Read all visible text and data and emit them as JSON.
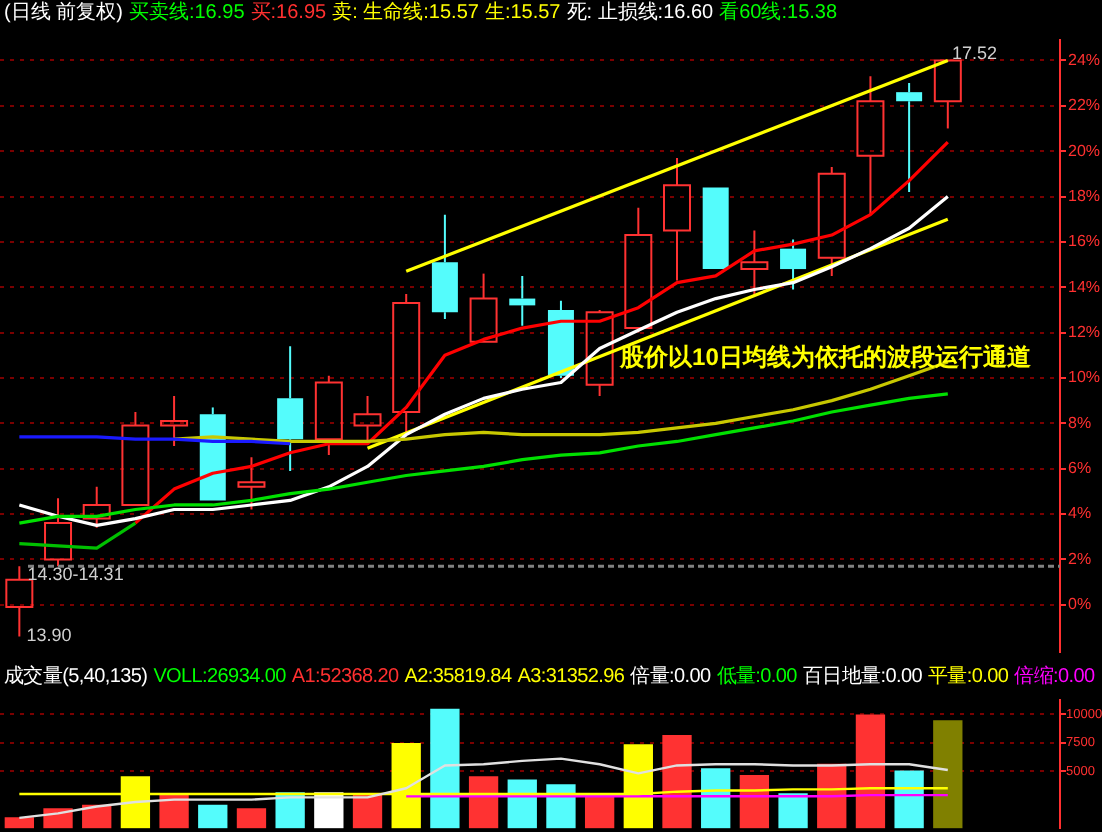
{
  "chart_data": [
    {
      "type": "candlestick",
      "title": "(日线 前复权)",
      "categories": [
        null,
        null,
        null,
        null,
        null,
        null,
        null,
        null,
        null,
        null,
        null,
        null,
        null,
        null,
        null,
        null,
        null,
        null,
        null,
        null,
        null,
        null,
        null,
        null,
        null
      ],
      "ohlc": [
        [
          -0.1,
          1.7,
          -1.4,
          1.1
        ],
        [
          2.0,
          4.7,
          1.7,
          3.6
        ],
        [
          3.8,
          5.2,
          3.4,
          4.4
        ],
        [
          4.4,
          8.5,
          4.4,
          7.9
        ],
        [
          7.9,
          9.2,
          7.0,
          8.1
        ],
        [
          8.4,
          8.7,
          4.6,
          4.6
        ],
        [
          5.2,
          6.5,
          4.2,
          5.4
        ],
        [
          9.1,
          11.4,
          5.9,
          7.3
        ],
        [
          7.3,
          10.1,
          6.6,
          9.8
        ],
        [
          7.9,
          9.2,
          7.1,
          8.4
        ],
        [
          8.5,
          13.7,
          7.5,
          13.3
        ],
        [
          15.1,
          17.2,
          12.6,
          12.9
        ],
        [
          11.6,
          14.6,
          11.6,
          13.5
        ],
        [
          13.5,
          14.5,
          12.3,
          13.2
        ],
        [
          13.0,
          13.4,
          10.0,
          10.1
        ],
        [
          9.7,
          13.0,
          9.2,
          12.9
        ],
        [
          12.2,
          17.5,
          12.0,
          16.3
        ],
        [
          16.5,
          19.7,
          14.3,
          18.5
        ],
        [
          18.4,
          18.4,
          14.8,
          14.8
        ],
        [
          14.8,
          16.5,
          13.6,
          15.1
        ],
        [
          15.7,
          16.1,
          13.9,
          14.8
        ],
        [
          15.3,
          19.3,
          14.5,
          19.0
        ],
        [
          19.8,
          23.3,
          17.2,
          22.2
        ],
        [
          22.6,
          23.0,
          18.2,
          22.2
        ],
        [
          22.2,
          24.0,
          21.0,
          24.0
        ]
      ],
      "colors": [
        "#ff3232",
        "#ff3232",
        "#ff3232",
        "#ff3232",
        "#ff3232",
        "#54fcfc",
        "#ff3232",
        "#54fcfc",
        "#ff3232",
        "#ff3232",
        "#ff3232",
        "#54fcfc",
        "#ff3232",
        "#54fcfc",
        "#54fcfc",
        "#ff3232",
        "#ff3232",
        "#ff3232",
        "#54fcfc",
        "#ff3232",
        "#54fcfc",
        "#ff3232",
        "#ff3232",
        "#54fcfc",
        "#ff3232"
      ],
      "series": [
        {
          "type": "line",
          "color": "#1a1aff",
          "values": [
            7.4,
            7.4,
            7.4,
            7.3,
            7.3,
            7.2,
            7.2,
            7.1,
            null,
            null,
            null,
            null,
            null,
            null,
            null,
            null,
            null,
            null,
            null,
            null,
            null,
            null,
            null,
            null,
            null
          ]
        },
        {
          "type": "line",
          "color": "#00c000",
          "values": [
            2.7,
            2.6,
            2.5,
            3.6,
            null,
            null,
            null,
            null,
            null,
            null,
            null,
            null,
            null,
            null,
            null,
            null,
            null,
            null,
            null,
            null,
            null,
            null,
            null,
            null,
            null
          ]
        },
        {
          "type": "line",
          "color": "#c8c800",
          "values": [
            null,
            null,
            null,
            null,
            7.3,
            7.4,
            7.3,
            7.2,
            7.2,
            7.2,
            7.3,
            7.5,
            7.6,
            7.5,
            7.5,
            7.5,
            7.6,
            7.8,
            8.0,
            8.3,
            8.6,
            9.0,
            9.5,
            10.1,
            10.7
          ]
        },
        {
          "type": "line",
          "color": "#00e000",
          "values": [
            3.6,
            3.9,
            3.9,
            4.2,
            4.4,
            4.4,
            4.6,
            4.9,
            5.1,
            5.4,
            5.7,
            5.9,
            6.1,
            6.4,
            6.6,
            6.7,
            7.0,
            7.2,
            7.5,
            7.8,
            8.1,
            8.5,
            8.8,
            9.1,
            9.3
          ]
        },
        {
          "type": "line",
          "color": "#ffffff",
          "values": [
            4.4,
            3.9,
            3.5,
            3.8,
            4.2,
            4.2,
            4.4,
            4.6,
            5.2,
            6.1,
            7.5,
            8.4,
            9.1,
            9.5,
            9.8,
            11.3,
            12.1,
            12.9,
            13.5,
            13.9,
            14.2,
            14.9,
            15.7,
            16.6,
            18.0
          ]
        },
        {
          "type": "line",
          "color": "#ff0000",
          "values": [
            null,
            null,
            null,
            3.6,
            5.1,
            5.8,
            6.1,
            6.7,
            7.1,
            7.1,
            8.7,
            11.0,
            11.7,
            12.2,
            12.5,
            12.5,
            13.1,
            14.2,
            14.5,
            15.6,
            15.9,
            16.3,
            17.2,
            18.7,
            20.4
          ]
        },
        {
          "type": "line",
          "color": "#ffff00",
          "values": [
            null,
            null,
            null,
            null,
            null,
            null,
            null,
            null,
            null,
            null,
            14.7,
            null,
            null,
            null,
            null,
            null,
            null,
            null,
            null,
            null,
            null,
            null,
            null,
            null,
            24.0
          ]
        },
        {
          "type": "line",
          "color": "#ffff00",
          "values": [
            null,
            null,
            null,
            null,
            null,
            null,
            null,
            null,
            null,
            6.9,
            null,
            null,
            null,
            null,
            null,
            null,
            null,
            null,
            null,
            null,
            null,
            null,
            null,
            null,
            17.0
          ]
        }
      ],
      "ylim": [
        -2.1,
        24.9
      ],
      "yticks": [
        {
          "value": 0,
          "label": "0%"
        },
        {
          "value": 2,
          "label": "2%"
        },
        {
          "value": 4,
          "label": "4%"
        },
        {
          "value": 6,
          "label": "6%"
        },
        {
          "value": 8,
          "label": "8%"
        },
        {
          "value": 10,
          "label": "10%"
        },
        {
          "value": 12,
          "label": "12%"
        },
        {
          "value": 14,
          "label": "14%"
        },
        {
          "value": 16,
          "label": "16%"
        },
        {
          "value": 18,
          "label": "18%"
        },
        {
          "value": 20,
          "label": "20%"
        },
        {
          "value": 22,
          "label": "22%"
        },
        {
          "value": 24,
          "label": "24%"
        }
      ],
      "grid": "y",
      "ref_lines": [
        {
          "axis": "y",
          "value": 1.7,
          "color": "#808080",
          "line_style": "dashed"
        }
      ],
      "annotations": [
        "买卖线:16.95",
        "买:16.95",
        "卖: 生命线:15.57",
        "生:15.57",
        "死: 止损线:16.60",
        "看60线:15.38",
        "股价以10日均线为依托的波段运行通道",
        "17.52",
        "13.90",
        "14.30-14.31"
      ]
    },
    {
      "type": "bar",
      "title": "成交量(5,40,135)",
      "categories": [
        null,
        null,
        null,
        null,
        null,
        null,
        null,
        null,
        null,
        null,
        null,
        null,
        null,
        null,
        null,
        null,
        null,
        null,
        null,
        null,
        null,
        null,
        null,
        null,
        null
      ],
      "series": [
        {
          "type": "bar",
          "colors": [
            "#ff3232",
            "#ff3232",
            "#ff3232",
            "#ffff00",
            "#ff3232",
            "#54fcfc",
            "#ff3232",
            "#54fcfc",
            "#ffffff",
            "#ff3232",
            "#ffff00",
            "#54fcfc",
            "#ff3232",
            "#54fcfc",
            "#54fcfc",
            "#ff3232",
            "#ffff00",
            "#ff3232",
            "#54fcfc",
            "#ff3232",
            "#54fcfc",
            "#ff3232",
            "#ff3232",
            "#54fcfc",
            "#808000"
          ],
          "values": [
            900,
            1700,
            2000,
            4500,
            2900,
            2000,
            1700,
            3100,
            3100,
            2900,
            7400,
            10400,
            4500,
            4200,
            3800,
            2900,
            7300,
            8100,
            5200,
            4600,
            3000,
            5600,
            9900,
            5000,
            9400
          ]
        },
        {
          "type": "line",
          "color": "#e0e0e0",
          "values": [
            900,
            1300,
            1900,
            2300,
            2500,
            2500,
            2500,
            2700,
            2700,
            2700,
            3500,
            5500,
            5600,
            5900,
            6100,
            5600,
            4800,
            5500,
            5600,
            5600,
            5500,
            5500,
            5600,
            5600,
            5100
          ]
        },
        {
          "type": "line",
          "color": "#ffff00",
          "values": [
            3000,
            3000,
            3000,
            3000,
            3000,
            3000,
            3000,
            3000,
            3000,
            3000,
            3000,
            3000,
            3000,
            3000,
            3000,
            3000,
            3000,
            3200,
            3300,
            3300,
            3400,
            3400,
            3500,
            3500,
            3500
          ]
        },
        {
          "type": "line",
          "color": "#ff00ff",
          "values": [
            null,
            null,
            null,
            null,
            null,
            null,
            null,
            null,
            null,
            null,
            2800,
            2800,
            2800,
            2800,
            2800,
            2800,
            2800,
            2800,
            2800,
            2800,
            2800,
            2800,
            2900,
            2900,
            2900
          ]
        }
      ],
      "ylim": [
        0,
        11250
      ],
      "yticks": [
        5000,
        7500,
        10000
      ],
      "grid": "y",
      "annotations": [
        "VOLL:26934.00",
        "A1:52368.20",
        "A2:35819.84",
        "A3:31352.96",
        "倍量:0.00",
        "低量:0.00",
        "百日地量:0.00",
        "平量:0.00",
        "倍缩:0.00"
      ]
    }
  ]
}
